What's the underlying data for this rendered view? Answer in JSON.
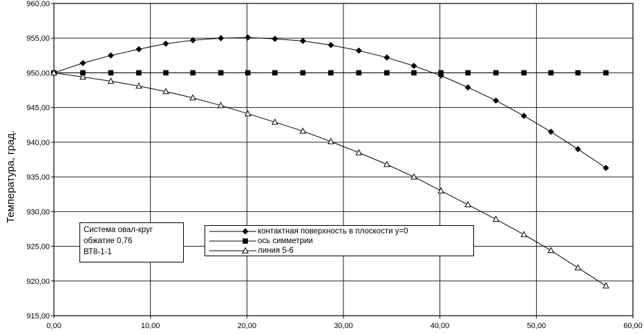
{
  "chart_data": {
    "type": "line",
    "ylabel": "Температура, град.",
    "xlabel": "",
    "xlim": [
      0,
      60
    ],
    "ylim": [
      915,
      960
    ],
    "grid": true,
    "x_ticks": [
      "0,00",
      "10,00",
      "20,00",
      "30,00",
      "40,00",
      "50,00",
      "60,00"
    ],
    "y_ticks": [
      "915,00",
      "920,00",
      "925,00",
      "930,00",
      "935,00",
      "940,00",
      "945,00",
      "950,00",
      "955,00",
      "960,00"
    ],
    "series": [
      {
        "name": "контактная поверхность в плоскости y=0",
        "marker": "diamond",
        "x": [
          0,
          3.0,
          5.9,
          8.8,
          11.6,
          14.4,
          17.3,
          20.1,
          22.9,
          25.8,
          28.7,
          31.6,
          34.5,
          37.3,
          40.1,
          42.9,
          45.8,
          48.7,
          51.5,
          54.3,
          57.2
        ],
        "y": [
          950.0,
          951.4,
          952.5,
          953.4,
          954.2,
          954.7,
          955.0,
          955.1,
          954.9,
          954.6,
          954.0,
          953.2,
          952.2,
          951.0,
          949.6,
          947.9,
          946.0,
          943.8,
          941.5,
          939.0,
          936.3
        ]
      },
      {
        "name": "ось симметрии",
        "marker": "square",
        "x": [
          0,
          3.0,
          5.9,
          8.8,
          11.6,
          14.4,
          17.3,
          20.1,
          22.9,
          25.8,
          28.7,
          31.6,
          34.5,
          37.3,
          40.1,
          42.9,
          45.8,
          48.7,
          51.5,
          54.3,
          57.2
        ],
        "y": [
          950.0,
          950.0,
          950.0,
          950.0,
          950.0,
          950.0,
          950.0,
          950.0,
          950.0,
          950.0,
          950.0,
          950.0,
          950.0,
          950.0,
          950.0,
          950.0,
          950.0,
          950.0,
          950.0,
          950.0,
          950.0
        ]
      },
      {
        "name": "линия 5-6",
        "marker": "triangle",
        "x": [
          0,
          3.0,
          5.9,
          8.8,
          11.6,
          14.4,
          17.3,
          20.1,
          22.9,
          25.8,
          28.7,
          31.6,
          34.5,
          37.3,
          40.1,
          42.9,
          45.8,
          48.7,
          51.5,
          54.3,
          57.2
        ],
        "y": [
          950.0,
          949.4,
          948.8,
          948.1,
          947.3,
          946.4,
          945.3,
          944.1,
          942.9,
          941.6,
          940.1,
          938.5,
          936.8,
          935.0,
          933.0,
          931.0,
          928.9,
          926.7,
          924.4,
          921.9,
          919.3
        ]
      }
    ],
    "annotation": [
      "Система овал-круг",
      "обжатие 0,76",
      "ВТ8-1-1"
    ],
    "legend_position": "bottom-center"
  }
}
